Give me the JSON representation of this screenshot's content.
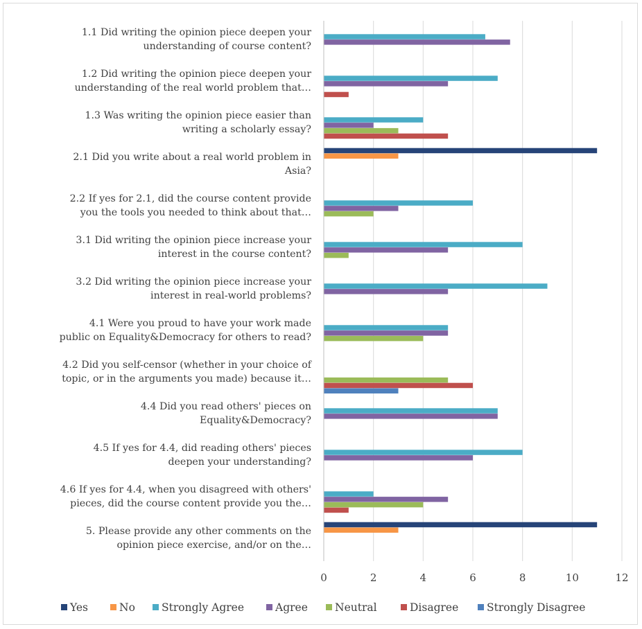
{
  "chart_data": {
    "type": "bar",
    "orientation": "horizontal",
    "categories": [
      "1.1 Did writing the opinion piece deepen your understanding of course content?",
      "1.2 Did writing the opinion piece deepen your understanding of the real world problem that…",
      "1.3 Was writing the opinion piece easier than writing a scholarly essay?",
      "2.1 Did you write about a real world problem in Asia?",
      "2.2 If yes for 2.1, did the course content provide you the tools you needed to think about that…",
      "3.1 Did writing the opinion piece increase your interest in the course content?",
      "3.2 Did writing the opinion piece increase your interest in real-world problems?",
      "4.1 Were you proud to have your work made public on Equality&Democracy for others to read?",
      "4.2 Did you self-censor (whether in your choice of topic, or in the arguments you made) because it…",
      "4.4 Did you read others' pieces on Equality&Democracy?",
      "4.5 If yes for 4.4, did reading others' pieces deepen your understanding?",
      "4.6 If yes for 4.4, when you disagreed with others' pieces, did the course content provide you the…",
      "5. Please provide any other comments on the opinion piece exercise, and/or on the…"
    ],
    "category_lines": [
      [
        "1.1 Did writing the opinion piece deepen your",
        "understanding of course content?"
      ],
      [
        "1.2 Did writing the opinion piece deepen your",
        "understanding of the real world problem that…"
      ],
      [
        "1.3 Was writing the opinion piece easier than",
        "writing a scholarly essay?"
      ],
      [
        "2.1 Did you write about a real world problem in",
        "Asia?"
      ],
      [
        "2.2 If yes for 2.1, did the course content provide",
        "you the tools you needed to think about that…"
      ],
      [
        "3.1 Did writing the opinion piece increase your",
        "interest in the course content?"
      ],
      [
        "3.2 Did writing the opinion piece increase your",
        "interest in real-world problems?"
      ],
      [
        "4.1 Were you proud to have your work made",
        "public on Equality&Democracy for others to read?"
      ],
      [
        "4.2 Did you self-censor (whether in your choice of",
        "topic, or in the arguments you made) because it…"
      ],
      [
        "4.4 Did you read others' pieces on",
        "Equality&Democracy?"
      ],
      [
        "4.5 If yes for 4.4, did reading others' pieces",
        "deepen your understanding?"
      ],
      [
        "4.6 If yes for 4.4, when you disagreed with others'",
        "pieces, did the course content provide you the…"
      ],
      [
        "5. Please provide any other comments on the",
        "opinion piece exercise, and/or on the…"
      ]
    ],
    "series": [
      {
        "name": "Yes",
        "color": "#264478",
        "values": [
          0,
          0,
          0,
          11,
          0,
          0,
          0,
          0,
          0,
          0,
          0,
          0,
          11
        ]
      },
      {
        "name": "No",
        "color": "#f79646",
        "values": [
          0,
          0,
          0,
          3,
          0,
          0,
          0,
          0,
          0,
          0,
          0,
          0,
          3
        ]
      },
      {
        "name": "Strongly Agree",
        "color": "#4bacc6",
        "values": [
          6.5,
          7,
          4,
          0,
          6,
          8,
          9,
          5,
          0,
          7,
          8,
          2,
          0
        ]
      },
      {
        "name": "Agree",
        "color": "#8064a2",
        "values": [
          7.5,
          5,
          2,
          0,
          3,
          5,
          5,
          5,
          0,
          7,
          6,
          5,
          0
        ]
      },
      {
        "name": "Neutral",
        "color": "#9bbb59",
        "values": [
          0,
          0,
          3,
          0,
          2,
          1,
          0,
          4,
          5,
          0,
          0,
          4,
          0
        ]
      },
      {
        "name": "Disagree",
        "color": "#c0504d",
        "values": [
          0,
          1,
          5,
          0,
          0,
          0,
          0,
          0,
          6,
          0,
          0,
          1,
          0
        ]
      },
      {
        "name": "Strongly Disagree",
        "color": "#4f81bd",
        "values": [
          0,
          0,
          0,
          0,
          0,
          0,
          0,
          0,
          3,
          0,
          0,
          0,
          0
        ]
      }
    ],
    "xlim": [
      0,
      12
    ],
    "xticks": [
      "0",
      "2",
      "4",
      "6",
      "8",
      "10",
      "12"
    ],
    "grid": true,
    "legend_position": "bottom",
    "title": "",
    "xlabel": "",
    "ylabel": ""
  }
}
